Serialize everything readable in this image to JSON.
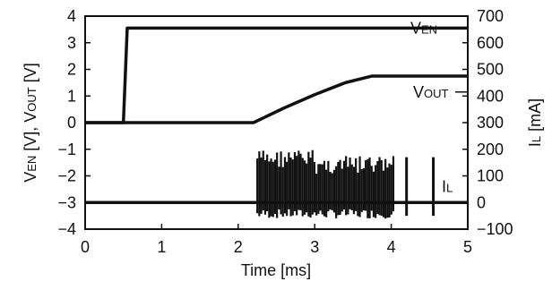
{
  "chart_data": {
    "type": "line",
    "xlabel": "Time [ms]",
    "ylabel_left": "VEN [V], VOUT [V]",
    "ylabel_right": "IL [mA]",
    "xlim": [
      0,
      5
    ],
    "ylim_left": [
      -4,
      4
    ],
    "ylim_right": [
      -100,
      700
    ],
    "x_ticks": [
      "0",
      "1",
      "2",
      "3",
      "4",
      "5"
    ],
    "y_ticks_left": [
      "4",
      "3",
      "2",
      "1",
      "0",
      "−1",
      "−2",
      "−3",
      "−4"
    ],
    "y_ticks_right": [
      "700",
      "600",
      "500",
      "400",
      "300",
      "200",
      "100",
      "0",
      "−100"
    ],
    "grid": false,
    "series": [
      {
        "name": "VEN",
        "axis": "left",
        "x": [
          0,
          0.5,
          0.55,
          5
        ],
        "y": [
          0,
          0,
          3.55,
          3.55
        ]
      },
      {
        "name": "VOUT",
        "axis": "left",
        "x": [
          0,
          2.2,
          2.6,
          3.0,
          3.4,
          3.75,
          5
        ],
        "y": [
          0,
          0,
          0.55,
          1.05,
          1.5,
          1.75,
          1.75
        ]
      },
      {
        "name": "IL",
        "axis": "right",
        "baseline": 0,
        "burst_x": [
          2.25,
          4.05
        ],
        "burst_range": [
          -60,
          200
        ],
        "isolated_pulses_x": [
          4.2,
          4.55
        ],
        "isolated_pulse_range": [
          -50,
          170
        ]
      }
    ],
    "annotations": [
      {
        "text": "V",
        "sub": "EN",
        "series": "VEN"
      },
      {
        "text": "V",
        "sub": "OUT",
        "series": "VOUT"
      },
      {
        "text": "I",
        "sub": "L",
        "series": "IL"
      }
    ]
  }
}
